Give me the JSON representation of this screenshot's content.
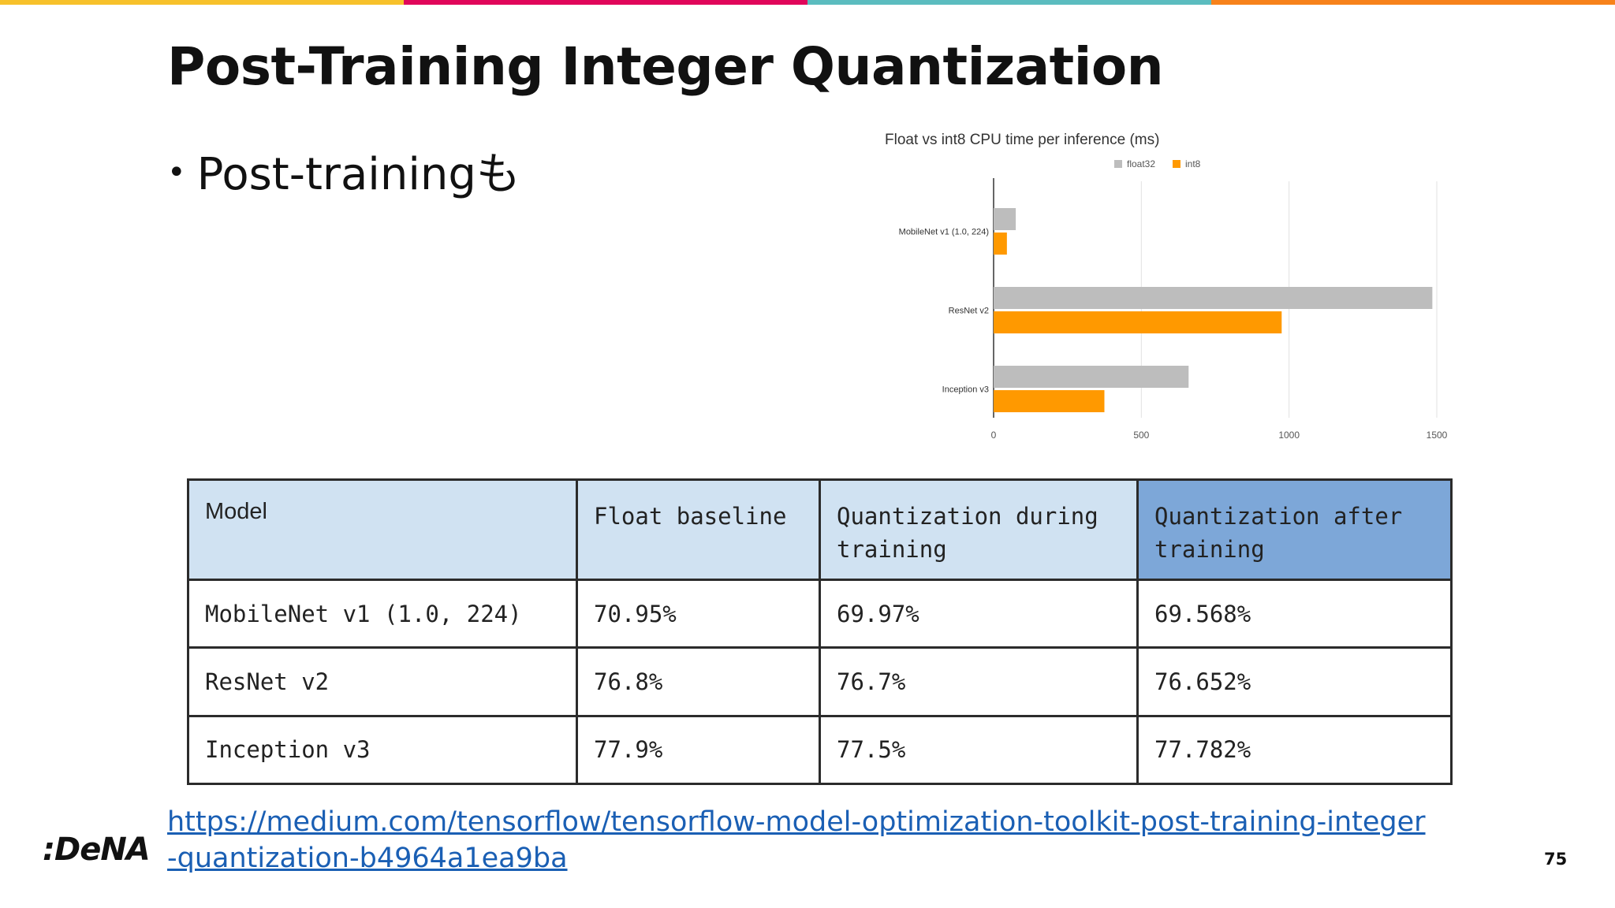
{
  "slide": {
    "title": "Post-Training Integer Quantization",
    "bullet_mark": "•",
    "bullet_text": "Post-trainingも",
    "logo": ":DeNA",
    "page_number": "75",
    "source_link": "https://medium.com/tensorflow/tensorflow-model-optimization-toolkit-post-training-integer-quantization-b4964a1ea9ba"
  },
  "colors": {
    "top_bar": [
      "#f7c12b",
      "#e0065a",
      "#5bbcbf",
      "#f7821b"
    ],
    "float32": "#bdbdbd",
    "int8": "#ff9900",
    "table_header": "#d0e2f2",
    "table_header_highlight": "#7da7d8",
    "link": "#1a5fb4"
  },
  "chart_data": {
    "type": "bar",
    "orientation": "horizontal",
    "title": "Float vs int8 CPU time per inference (ms)",
    "categories": [
      "MobileNet v1 (1.0, 224)",
      "ResNet v2",
      "Inception v3"
    ],
    "series": [
      {
        "name": "float32",
        "values": [
          75,
          1485,
          660
        ]
      },
      {
        "name": "int8",
        "values": [
          45,
          975,
          375
        ]
      }
    ],
    "x_ticks": [
      0,
      500,
      1000,
      1500
    ],
    "xlim": [
      0,
      1500
    ],
    "grid": true,
    "legend_position": "top"
  },
  "table": {
    "headers": [
      [
        "Model"
      ],
      [
        "Float baseline"
      ],
      [
        "Quantization during",
        "training"
      ],
      [
        "Quantization after",
        "training"
      ]
    ],
    "rows": [
      [
        "MobileNet v1 (1.0, 224)",
        "70.95%",
        "69.97%",
        "69.568%"
      ],
      [
        "ResNet v2",
        "76.8%",
        "76.7%",
        "76.652%"
      ],
      [
        "Inception v3",
        "77.9%",
        "77.5%",
        "77.782%"
      ]
    ]
  }
}
